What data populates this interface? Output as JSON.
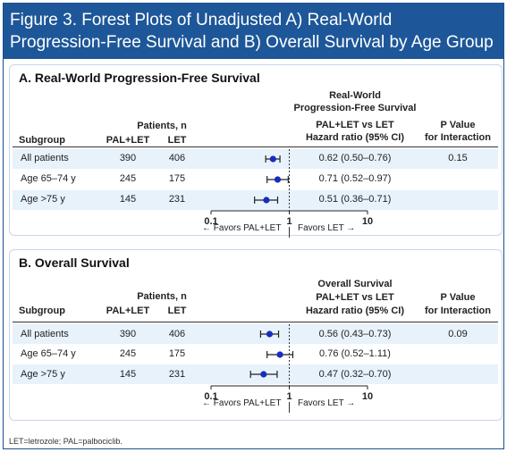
{
  "figure": {
    "title_line1": "Figure 3. Forest Plots of Unadjusted A) Real-World",
    "title_line2": "Progression-Free Survival and B) Overall Survival by Age Group",
    "footnote": "LET=letrozole; PAL=palbociclib."
  },
  "colors": {
    "header_bg": "#1d5799",
    "band": "#e8f2fb",
    "point": "#1a2bbf"
  },
  "panels": [
    {
      "title": "A. Real-World Progression-Free Survival",
      "headers": {
        "subgroup": "Subgroup",
        "patients": "Patients, n",
        "pal_let": "PAL+LET",
        "let": "LET",
        "hr_line1": "Real-World",
        "hr_line2": "Progression-Free Survival",
        "hr_line3": "PAL+LET vs LET",
        "hr_line4": "Hazard ratio (95% CI)",
        "p_line1": "P Value",
        "p_line2": "for Interaction"
      },
      "rows": [
        {
          "subgroup": "All patients",
          "pal_let": "390",
          "let": "406",
          "hr_text": "0.62 (0.50–0.76)",
          "p": "0.15"
        },
        {
          "subgroup": "Age 65–74 y",
          "pal_let": "245",
          "let": "175",
          "hr_text": "0.71 (0.52–0.97)",
          "p": ""
        },
        {
          "subgroup": "Age >75 y",
          "pal_let": "145",
          "let": "231",
          "hr_text": "0.51 (0.36–0.71)",
          "p": ""
        }
      ],
      "axis_ticks": [
        "0.1",
        "1",
        "10"
      ],
      "favors_left": "← Favors PAL+LET",
      "favors_right": "Favors LET →"
    },
    {
      "title": "B. Overall Survival",
      "headers": {
        "subgroup": "Subgroup",
        "patients": "Patients, n",
        "pal_let": "PAL+LET",
        "let": "LET",
        "hr_line1": "Overall Survival",
        "hr_line2": "PAL+LET vs LET",
        "hr_line3": "Hazard ratio (95% CI)",
        "hr_line4": "",
        "p_line1": "P Value",
        "p_line2": "for Interaction"
      },
      "rows": [
        {
          "subgroup": "All patients",
          "pal_let": "390",
          "let": "406",
          "hr_text": "0.56 (0.43–0.73)",
          "p": "0.09"
        },
        {
          "subgroup": "Age 65–74 y",
          "pal_let": "245",
          "let": "175",
          "hr_text": "0.76 (0.52–1.11)",
          "p": ""
        },
        {
          "subgroup": "Age >75 y",
          "pal_let": "145",
          "let": "231",
          "hr_text": "0.47 (0.32–0.70)",
          "p": ""
        }
      ],
      "axis_ticks": [
        "0.1",
        "1",
        "10"
      ],
      "favors_left": "← Favors PAL+LET",
      "favors_right": "Favors LET →"
    }
  ],
  "chart_data": [
    {
      "type": "scatter",
      "title": "A. Real-World Progression-Free Survival",
      "log_x": true,
      "xlim": [
        0.1,
        10
      ],
      "xticks": [
        0.1,
        1,
        10
      ],
      "reference_line": 1,
      "categories": [
        "All patients",
        "Age 65–74 y",
        "Age >75 y"
      ],
      "series": [
        {
          "hr": [
            0.62,
            0.71,
            0.51
          ],
          "ci_low": [
            0.5,
            0.52,
            0.36
          ],
          "ci_high": [
            0.76,
            0.97,
            0.71
          ]
        }
      ]
    },
    {
      "type": "scatter",
      "title": "B. Overall Survival",
      "log_x": true,
      "xlim": [
        0.1,
        10
      ],
      "xticks": [
        0.1,
        1,
        10
      ],
      "reference_line": 1,
      "categories": [
        "All patients",
        "Age 65–74 y",
        "Age >75 y"
      ],
      "series": [
        {
          "hr": [
            0.56,
            0.76,
            0.47
          ],
          "ci_low": [
            0.43,
            0.52,
            0.32
          ],
          "ci_high": [
            0.73,
            1.11,
            0.7
          ]
        }
      ]
    }
  ]
}
